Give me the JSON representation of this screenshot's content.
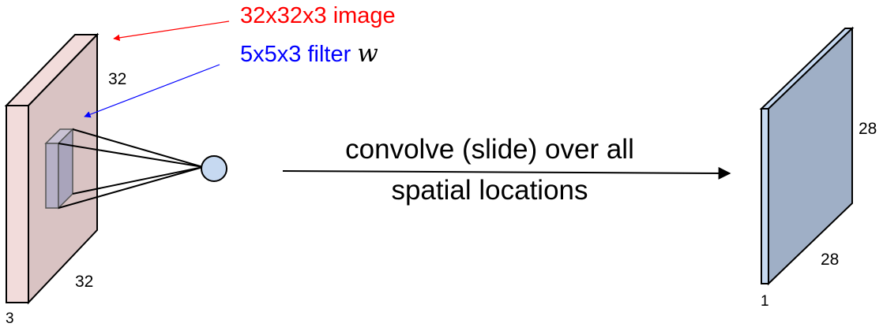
{
  "labels": {
    "image": "32x32x3 image",
    "filter": "5x5x3 filter",
    "filter_symbol": "w",
    "input_height": "32",
    "input_width": "32",
    "input_depth": "3",
    "caption_line1": "convolve (slide) over all",
    "caption_line2": "spatial locations",
    "output_height": "28",
    "output_width": "28",
    "output_depth": "1"
  },
  "colors": {
    "image_label": "#ff0000",
    "filter_label": "#0000ff",
    "input_volume_face": "#d9c3c3",
    "input_volume_side": "#f2dcdb",
    "filter_face": "#a9a4bb",
    "neuron": "#c6d9f1",
    "output_face": "#9fafc6",
    "output_side": "#c6d9f1",
    "stroke": "#000000"
  }
}
